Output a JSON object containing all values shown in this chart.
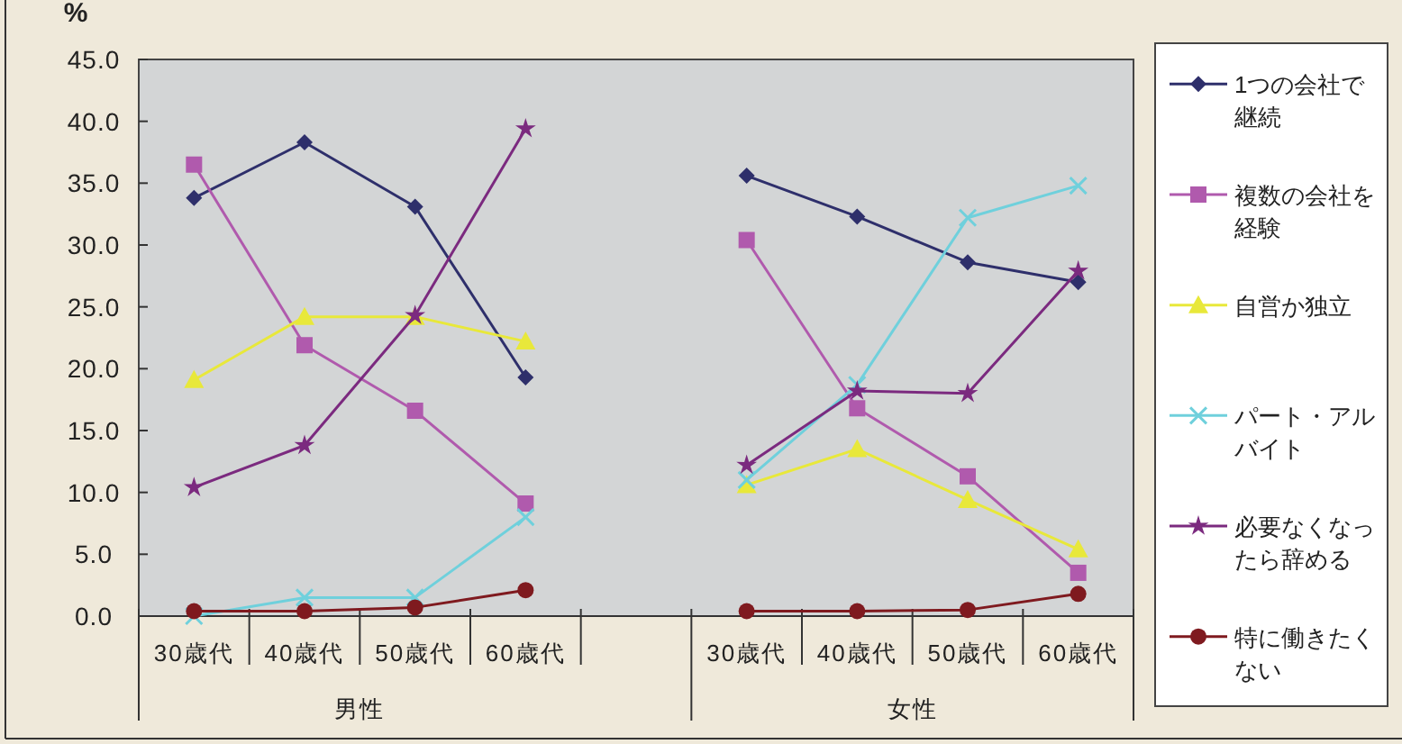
{
  "chart_data": {
    "type": "line",
    "ylabel": "%",
    "categories": [
      "30歳代",
      "40歳代",
      "50歳代",
      "60歳代",
      null,
      "30歳代",
      "40歳代",
      "50歳代",
      "60歳代"
    ],
    "annotations": [
      "男性",
      "女性"
    ],
    "ylim": [
      0,
      45
    ],
    "yticks": [
      {
        "value": 0,
        "label": "0.0"
      },
      {
        "value": 5,
        "label": "5.0"
      },
      {
        "value": 10,
        "label": "10.0"
      },
      {
        "value": 15,
        "label": "15.0"
      },
      {
        "value": 20,
        "label": "20.0"
      },
      {
        "value": 25,
        "label": "25.0"
      },
      {
        "value": 30,
        "label": "30.0"
      },
      {
        "value": 35,
        "label": "35.0"
      },
      {
        "value": 40,
        "label": "40.0"
      },
      {
        "value": 45,
        "label": "45.0"
      }
    ],
    "legend": "right",
    "series": [
      {
        "name": "1つの会社で継続",
        "color": "#2e2f6b",
        "marker": "diamond",
        "values": [
          33.8,
          38.3,
          33.1,
          19.3,
          null,
          35.6,
          32.3,
          28.6,
          27.0
        ]
      },
      {
        "name": "複数の会社を経験",
        "color": "#b05aad",
        "marker": "square",
        "values": [
          36.5,
          21.9,
          16.6,
          9.1,
          null,
          30.4,
          16.8,
          11.3,
          3.5
        ]
      },
      {
        "name": "自営か独立",
        "color": "#e8e83a",
        "marker": "triangle",
        "values": [
          19.1,
          24.2,
          24.2,
          22.2,
          null,
          10.6,
          13.5,
          9.4,
          5.4
        ]
      },
      {
        "name": "パート・アルバイト",
        "color": "#6fd0dc",
        "marker": "cross",
        "values": [
          0.0,
          1.5,
          1.5,
          8.0,
          null,
          11.0,
          18.7,
          32.2,
          34.8
        ]
      },
      {
        "name": "必要なくなったら辞める",
        "color": "#7b2a7f",
        "marker": "star",
        "values": [
          10.4,
          13.8,
          24.3,
          39.4,
          null,
          12.2,
          18.2,
          18.0,
          27.9
        ]
      },
      {
        "name": "特に働きたくない",
        "color": "#7f1a1f",
        "marker": "circle",
        "values": [
          0.4,
          0.4,
          0.7,
          2.1,
          null,
          0.4,
          0.4,
          0.5,
          1.8
        ]
      }
    ]
  }
}
